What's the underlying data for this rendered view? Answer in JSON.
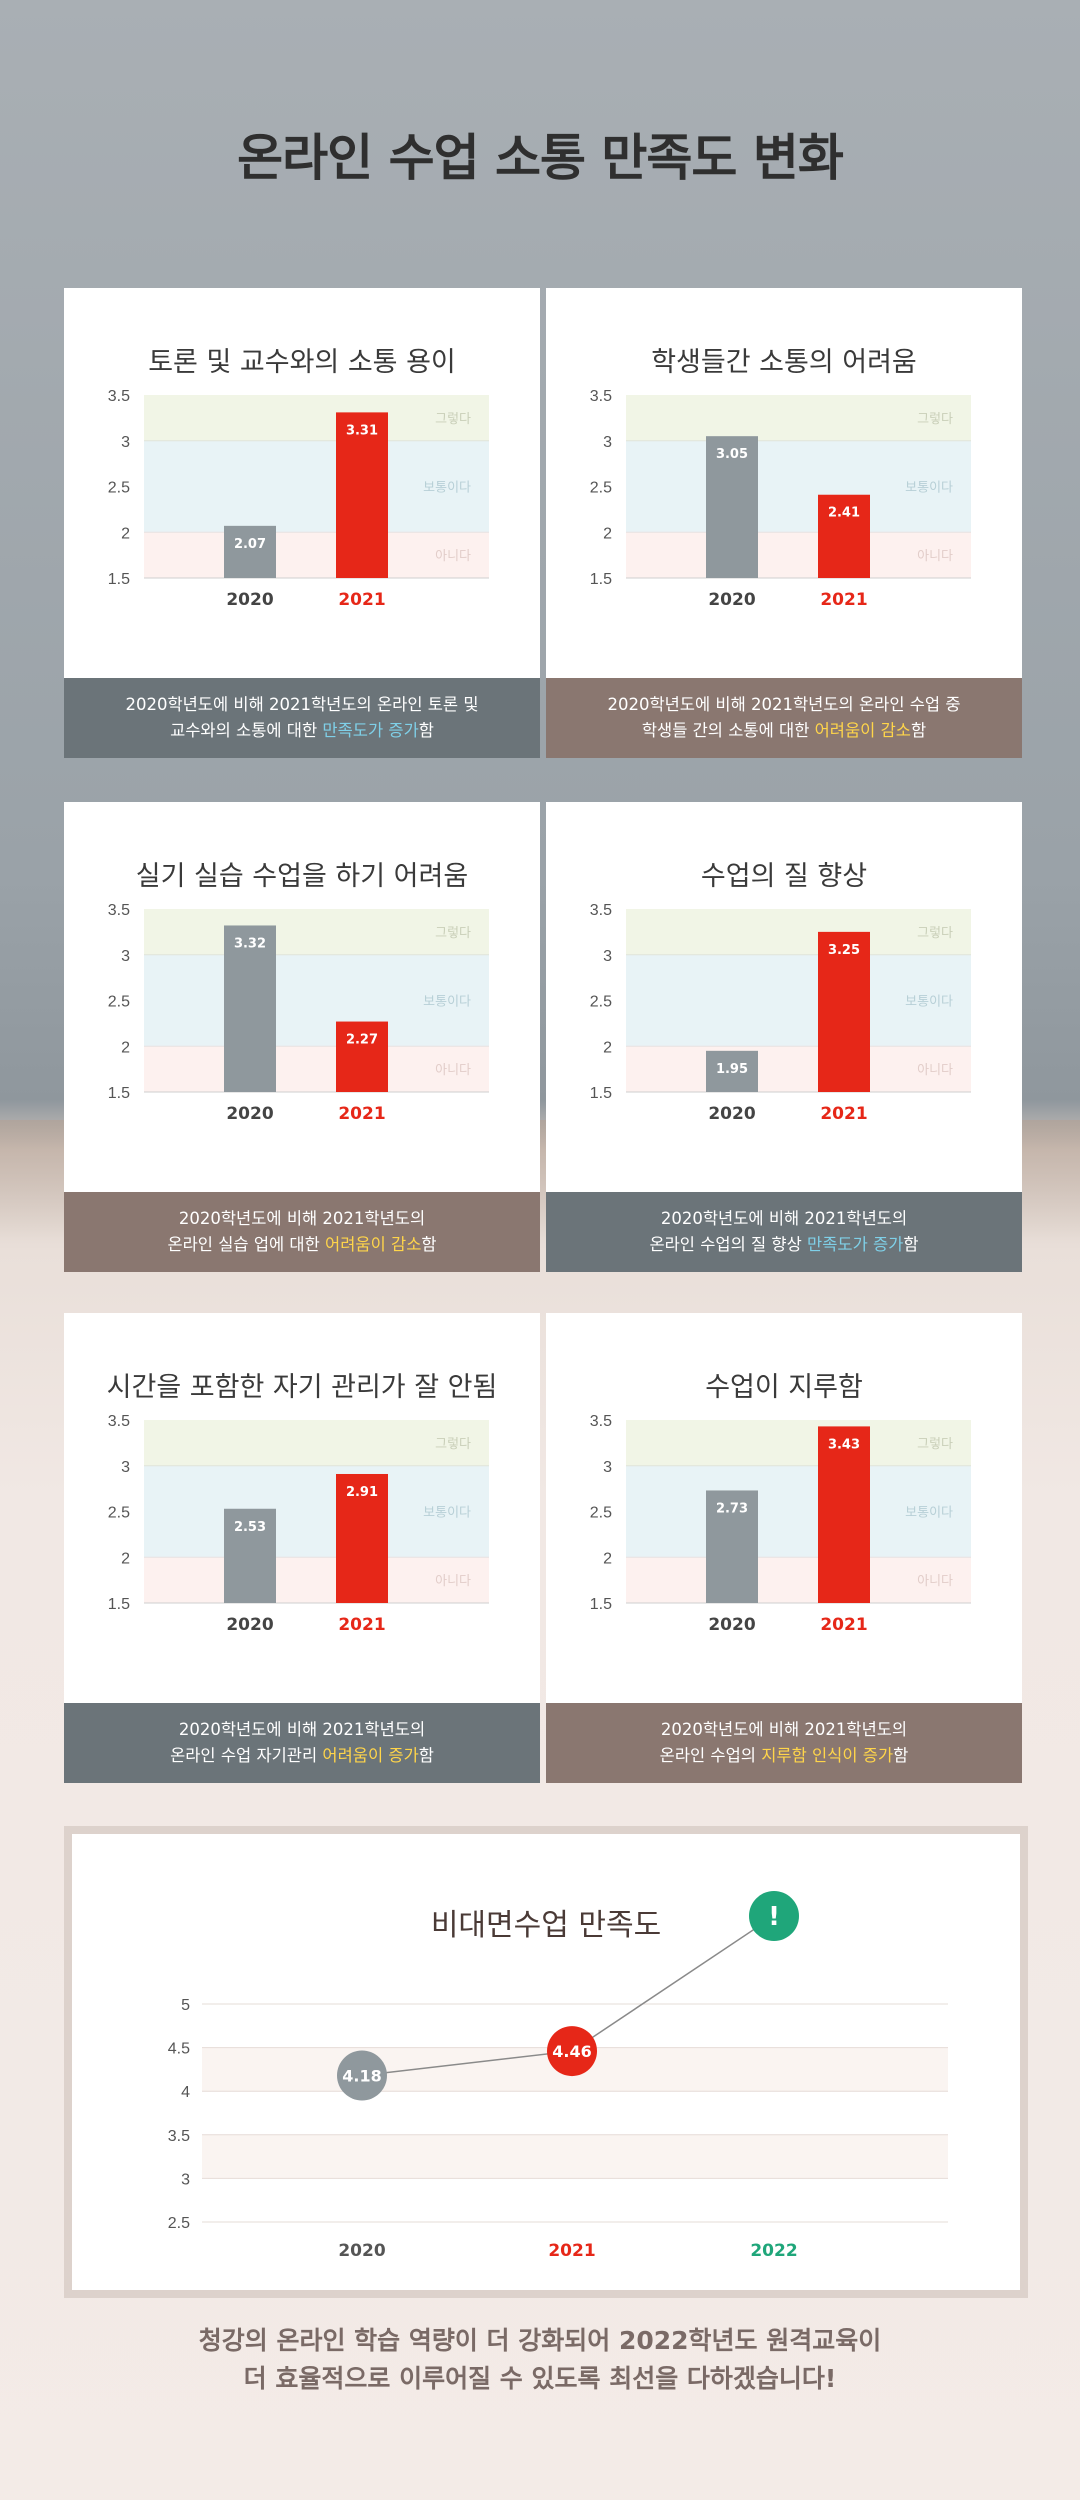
{
  "page": {
    "title_normal": "온라인 수업 소통 ",
    "title_bold": "만족도 변화"
  },
  "colors": {
    "bar_2020": "#8f989d",
    "bar_2021": "#e62718",
    "band_top": "#f1f5e6",
    "band_mid": "#e8f3f6",
    "band_low": "#fdf1ef",
    "point_2022": "#1fa67a"
  },
  "bands": {
    "top_label": "그렇다",
    "mid_label": "보통이다",
    "low_label": "아니다",
    "top_range": [
      3,
      3.5
    ],
    "mid_range": [
      2,
      3
    ],
    "low_range": [
      1.5,
      2
    ]
  },
  "cards": [
    {
      "title": "토론 및 교수와의 소통 용이",
      "footer_line1": "2020학년도에 비해 2021학년도의 온라인 토론 및",
      "footer_pre": "교수와의 소통에 대한 ",
      "footer_hl": "만족도가 증가",
      "footer_post": "함"
    },
    {
      "title": "학생들간 소통의 어려움",
      "footer_line1": "2020학년도에 비해 2021학년도의 온라인 수업 중",
      "footer_pre": "학생들 간의 소통에 대한 ",
      "footer_hl": "어려움이 감소",
      "footer_post": "함"
    },
    {
      "title": "실기 실습 수업을 하기 어려움",
      "footer_line1": "2020학년도에 비해 2021학년도의",
      "footer_pre": "온라인 실습 업에 대한 ",
      "footer_hl": "어려움이 감소",
      "footer_post": "함"
    },
    {
      "title": "수업의 질 향상",
      "footer_line1": "2020학년도에 비해 2021학년도의",
      "footer_pre": "온라인 수업의 질 향상 ",
      "footer_hl": "만족도가 증가",
      "footer_post": "함"
    },
    {
      "title": "시간을 포함한 자기 관리가 잘 안됨",
      "footer_line1": "2020학년도에 비해 2021학년도의",
      "footer_pre": "온라인 수업 자기관리 ",
      "footer_hl": "어려움이 증가",
      "footer_post": "함"
    },
    {
      "title": "수업이 지루함",
      "footer_line1": "2020학년도에 비해 2021학년도의",
      "footer_pre": "온라인 수업의 ",
      "footer_hl": "지루함 인식이 증가",
      "footer_post": "함"
    }
  ],
  "line_card": {
    "title": "비대면수업 만족도",
    "marker_2022": "!"
  },
  "closing": {
    "line1": "청강의 온라인 학습 역량이 더 강화되어 2022학년도 원격교육이",
    "line2": "더 효율적으로 이루어질 수 있도록 최선을 다하겠습니다!"
  },
  "chart_data": [
    {
      "type": "bar",
      "title": "토론 및 교수와의 소통 용이",
      "categories": [
        "2020",
        "2021"
      ],
      "values": [
        2.07,
        3.31
      ],
      "ylim": [
        1.5,
        3.5
      ],
      "yticks": [
        "1.5",
        "2",
        "2.5",
        "3",
        "3.5"
      ],
      "grid": false
    },
    {
      "type": "bar",
      "title": "학생들간 소통의 어려움",
      "categories": [
        "2020",
        "2021"
      ],
      "values": [
        3.05,
        2.41
      ],
      "ylim": [
        1.5,
        3.5
      ],
      "yticks": [
        "1.5",
        "2",
        "2.5",
        "3",
        "3.5"
      ],
      "grid": false
    },
    {
      "type": "bar",
      "title": "실기 실습 수업을 하기 어려움",
      "categories": [
        "2020",
        "2021"
      ],
      "values": [
        3.32,
        2.27
      ],
      "ylim": [
        1.5,
        3.5
      ],
      "yticks": [
        "1.5",
        "2",
        "2.5",
        "3",
        "3.5"
      ],
      "grid": false
    },
    {
      "type": "bar",
      "title": "수업의 질 향상",
      "categories": [
        "2020",
        "2021"
      ],
      "values": [
        1.95,
        3.25
      ],
      "ylim": [
        1.5,
        3.5
      ],
      "yticks": [
        "1.5",
        "2",
        "2.5",
        "3",
        "3.5"
      ],
      "grid": false
    },
    {
      "type": "bar",
      "title": "시간을 포함한 자기 관리가 잘 안됨",
      "categories": [
        "2020",
        "2021"
      ],
      "values": [
        2.53,
        2.91
      ],
      "ylim": [
        1.5,
        3.5
      ],
      "yticks": [
        "1.5",
        "2",
        "2.5",
        "3",
        "3.5"
      ],
      "grid": false
    },
    {
      "type": "bar",
      "title": "수업이 지루함",
      "categories": [
        "2020",
        "2021"
      ],
      "values": [
        2.73,
        3.43
      ],
      "ylim": [
        1.5,
        3.5
      ],
      "yticks": [
        "1.5",
        "2",
        "2.5",
        "3",
        "3.5"
      ],
      "grid": false
    },
    {
      "type": "line",
      "title": "비대면수업 만족도",
      "categories": [
        "2020",
        "2021",
        "2022"
      ],
      "values": [
        4.18,
        4.46,
        null
      ],
      "point_labels": [
        "4.18",
        "4.46",
        "!"
      ],
      "ylim": [
        2.5,
        5
      ],
      "yticks": [
        "2.5",
        "3",
        "3.5",
        "4",
        "4.5",
        "5"
      ],
      "grid": true
    }
  ]
}
